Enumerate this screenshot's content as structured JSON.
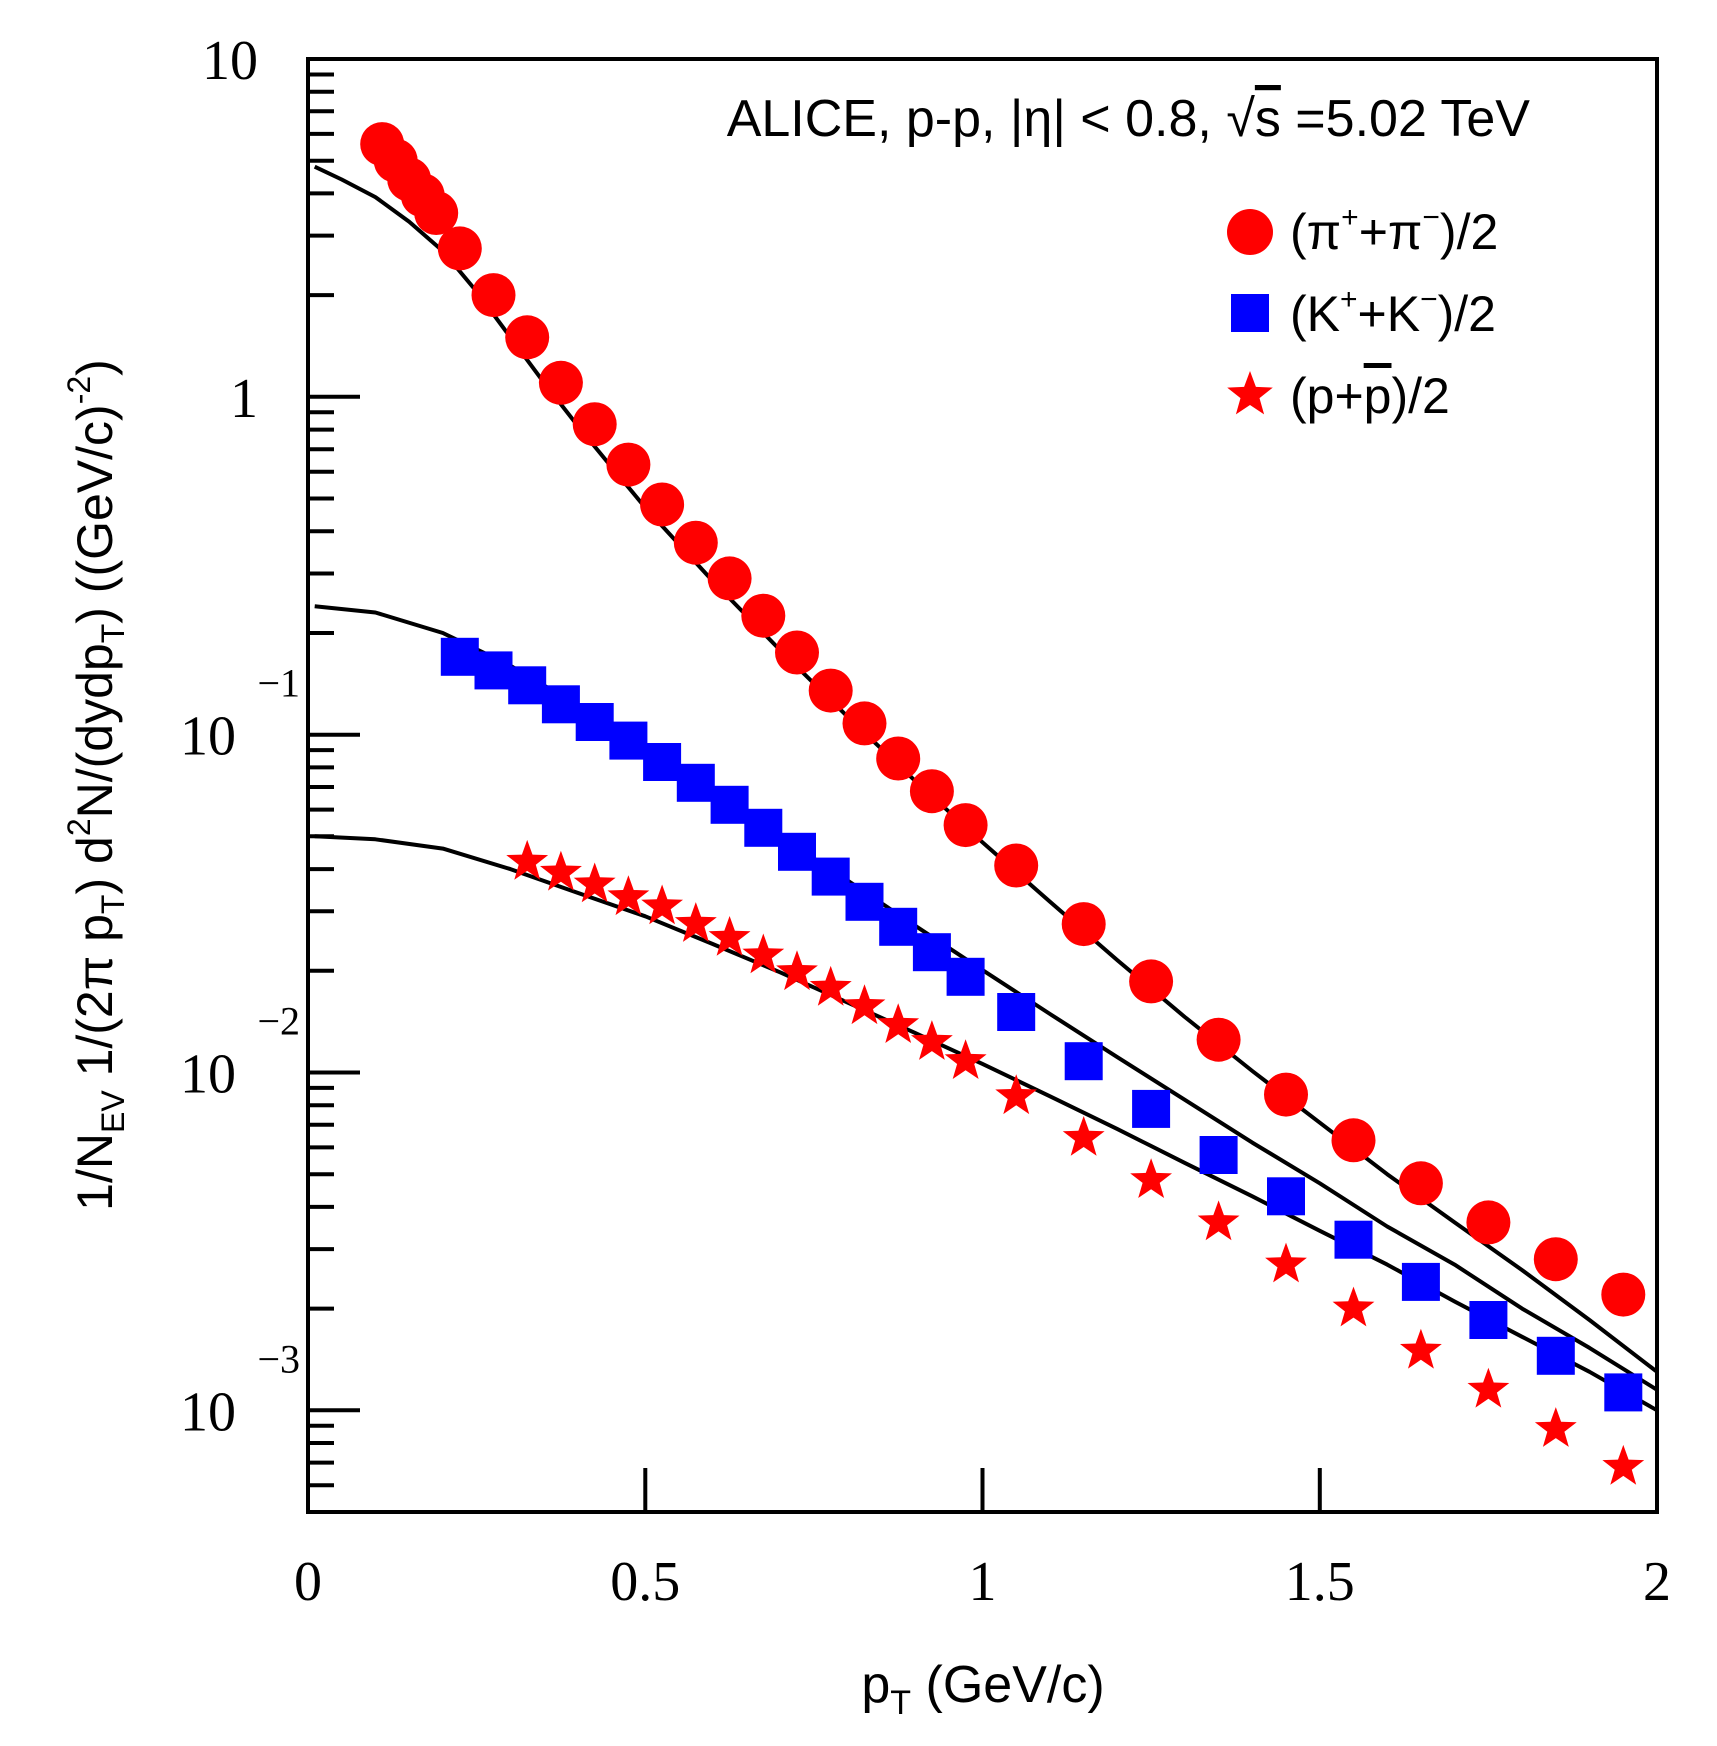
{
  "chart_data": {
    "type": "scatter",
    "title": "ALICE, p-p, |η| < 0.8, √s =5.02 TeV",
    "title_parts": {
      "prefix": "ALICE, p-p, |η| < 0.8, ",
      "sqrt_sign": "√",
      "sqrt_arg": "s",
      "suffix": " =5.02 TeV"
    },
    "xlabel": {
      "main": "p",
      "sub": "T",
      "rest": " (GeV/c)"
    },
    "ylabel": {
      "t1": "1/N",
      "s1": "EV",
      "t2": " 1/(2π p",
      "s2": "T",
      "t3": ") d",
      "p3": "2",
      "t4": "N/(dydp",
      "s4": "T",
      "t5": ") ((GeV/c)",
      "p5": "-2",
      "t6": ")"
    },
    "xlim": [
      0,
      2
    ],
    "ylim": [
      0.0005,
      10
    ],
    "yscale": "log",
    "x_ticks": [
      {
        "value": 0,
        "label": "0"
      },
      {
        "value": 0.5,
        "label": "0.5"
      },
      {
        "value": 1,
        "label": "1"
      },
      {
        "value": 1.5,
        "label": "1.5"
      },
      {
        "value": 2,
        "label": "2"
      }
    ],
    "y_ticks": [
      {
        "value": 10,
        "base": "10",
        "exp": ""
      },
      {
        "value": 1,
        "base": "1",
        "exp": ""
      },
      {
        "value": 0.1,
        "base": "10",
        "exp": "−1"
      },
      {
        "value": 0.01,
        "base": "10",
        "exp": "−2"
      },
      {
        "value": 0.001,
        "base": "10",
        "exp": "−3"
      }
    ],
    "series": [
      {
        "name": "(π⁺+π⁻)/2",
        "legend": {
          "base": "(π",
          "sup1": "+",
          "mid": "+π",
          "sup2": "−",
          "end": ")/2"
        },
        "marker": "circle",
        "color": "#ff0000",
        "x": [
          0.11,
          0.13,
          0.15,
          0.17,
          0.19,
          0.225,
          0.275,
          0.325,
          0.375,
          0.425,
          0.475,
          0.525,
          0.575,
          0.625,
          0.675,
          0.725,
          0.775,
          0.825,
          0.875,
          0.925,
          0.975,
          1.05,
          1.15,
          1.25,
          1.35,
          1.45,
          1.55,
          1.65,
          1.75,
          1.85,
          1.95
        ],
        "y": [
          5.6,
          5.0,
          4.4,
          3.95,
          3.5,
          2.75,
          2.0,
          1.5,
          1.1,
          0.83,
          0.63,
          0.48,
          0.37,
          0.29,
          0.225,
          0.175,
          0.135,
          0.108,
          0.085,
          0.068,
          0.054,
          0.041,
          0.0275,
          0.0186,
          0.0125,
          0.0086,
          0.0063,
          0.0047,
          0.0036,
          0.0028,
          0.0022
        ]
      },
      {
        "name": "(K⁺+K⁻)/2",
        "legend": {
          "base": "(K",
          "sup1": "+",
          "mid": "+K",
          "sup2": "−",
          "end": ")/2"
        },
        "marker": "square",
        "color": "#0000ff",
        "x": [
          0.225,
          0.275,
          0.325,
          0.375,
          0.425,
          0.475,
          0.525,
          0.575,
          0.625,
          0.675,
          0.725,
          0.775,
          0.825,
          0.875,
          0.925,
          0.975,
          1.05,
          1.15,
          1.25,
          1.35,
          1.45,
          1.55,
          1.65,
          1.75,
          1.85,
          1.95
        ],
        "y": [
          0.17,
          0.155,
          0.14,
          0.123,
          0.109,
          0.096,
          0.083,
          0.072,
          0.062,
          0.053,
          0.045,
          0.038,
          0.032,
          0.027,
          0.0227,
          0.0192,
          0.0151,
          0.0108,
          0.0078,
          0.0057,
          0.0043,
          0.0032,
          0.0024,
          0.00185,
          0.00145,
          0.00113
        ]
      },
      {
        "name": "(p+p̄)/2",
        "legend": {
          "base": "(p+",
          "bar": "p",
          "end": ")/2"
        },
        "marker": "star",
        "color": "#ff0000",
        "x": [
          0.325,
          0.375,
          0.425,
          0.475,
          0.525,
          0.575,
          0.625,
          0.675,
          0.725,
          0.775,
          0.825,
          0.875,
          0.925,
          0.975,
          1.05,
          1.15,
          1.25,
          1.35,
          1.45,
          1.55,
          1.65,
          1.75,
          1.85,
          1.95
        ],
        "y": [
          0.042,
          0.039,
          0.036,
          0.033,
          0.031,
          0.0275,
          0.025,
          0.0222,
          0.0198,
          0.0178,
          0.0157,
          0.0138,
          0.0123,
          0.0108,
          0.0085,
          0.0064,
          0.0048,
          0.0036,
          0.0027,
          0.002,
          0.0015,
          0.00115,
          0.00088,
          0.00068
        ]
      }
    ],
    "fits": [
      {
        "name": "pion-fit",
        "x": [
          0.01,
          0.05,
          0.1,
          0.15,
          0.2,
          0.25,
          0.3,
          0.35,
          0.4,
          0.45,
          0.5,
          0.6,
          0.7,
          0.8,
          0.9,
          1.0,
          1.1,
          1.2,
          1.3,
          1.4,
          1.5,
          1.6,
          1.7,
          1.8,
          1.9,
          2.0
        ],
        "y": [
          4.8,
          4.4,
          3.9,
          3.3,
          2.7,
          2.05,
          1.5,
          1.1,
          0.82,
          0.62,
          0.47,
          0.285,
          0.178,
          0.113,
          0.073,
          0.048,
          0.032,
          0.0215,
          0.0146,
          0.0101,
          0.0071,
          0.005,
          0.0036,
          0.0026,
          0.00185,
          0.0013
        ]
      },
      {
        "name": "kaon-fit",
        "x": [
          0.01,
          0.1,
          0.2,
          0.3,
          0.4,
          0.5,
          0.6,
          0.7,
          0.8,
          0.9,
          1.0,
          1.1,
          1.2,
          1.3,
          1.4,
          1.5,
          1.6,
          1.7,
          1.8,
          1.9,
          2.0
        ],
        "y": [
          0.24,
          0.23,
          0.2,
          0.16,
          0.122,
          0.092,
          0.068,
          0.05,
          0.037,
          0.0272,
          0.0201,
          0.0149,
          0.0111,
          0.0083,
          0.0062,
          0.0047,
          0.0035,
          0.0027,
          0.002,
          0.00153,
          0.00115
        ]
      },
      {
        "name": "proton-fit",
        "x": [
          0.01,
          0.1,
          0.2,
          0.3,
          0.4,
          0.5,
          0.6,
          0.7,
          0.8,
          0.9,
          1.0,
          1.1,
          1.2,
          1.3,
          1.4,
          1.5,
          1.6,
          1.7,
          1.8,
          1.9,
          2.0
        ],
        "y": [
          0.05,
          0.049,
          0.046,
          0.04,
          0.034,
          0.029,
          0.024,
          0.0198,
          0.0161,
          0.0131,
          0.0106,
          0.0085,
          0.0068,
          0.0054,
          0.0043,
          0.0034,
          0.0027,
          0.0021,
          0.00165,
          0.0013,
          0.001
        ]
      }
    ]
  }
}
